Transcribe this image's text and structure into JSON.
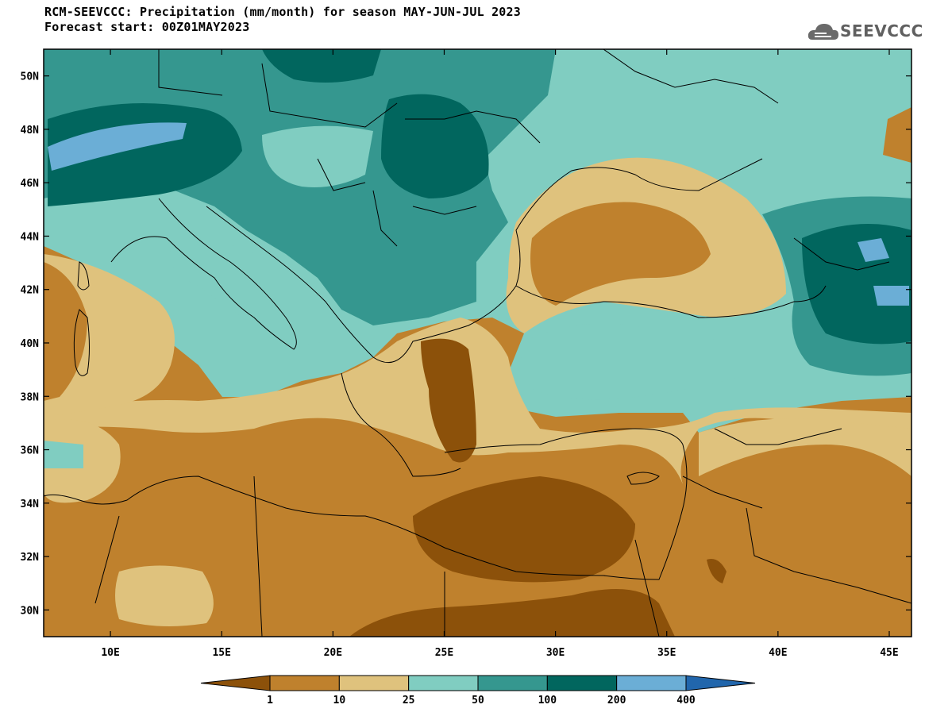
{
  "header": {
    "title": "RCM-SEEVCCC: Precipitation (mm/month) for season MAY-JUN-JUL 2023",
    "subtitle": "Forecast start: 00Z01MAY2023",
    "logo_text": "SEEVCCC",
    "logo_icon": "cloud-icon"
  },
  "map": {
    "variable": "Precipitation",
    "units": "mm/month",
    "lon_range": [
      7,
      46
    ],
    "lat_range": [
      29,
      51
    ],
    "lon_ticks": [
      "10E",
      "15E",
      "20E",
      "25E",
      "30E",
      "35E",
      "40E",
      "45E"
    ],
    "lat_ticks": [
      "50N",
      "48N",
      "46N",
      "44N",
      "42N",
      "40N",
      "38N",
      "36N",
      "34N",
      "32N",
      "30N"
    ]
  },
  "legend": {
    "labels": [
      "1",
      "10",
      "25",
      "50",
      "100",
      "200",
      "400"
    ],
    "colors": [
      "#8c510a",
      "#bf812d",
      "#dfc27d",
      "#80cdc1",
      "#35978f",
      "#01665e",
      "#6baed6",
      "#2166ac"
    ]
  }
}
